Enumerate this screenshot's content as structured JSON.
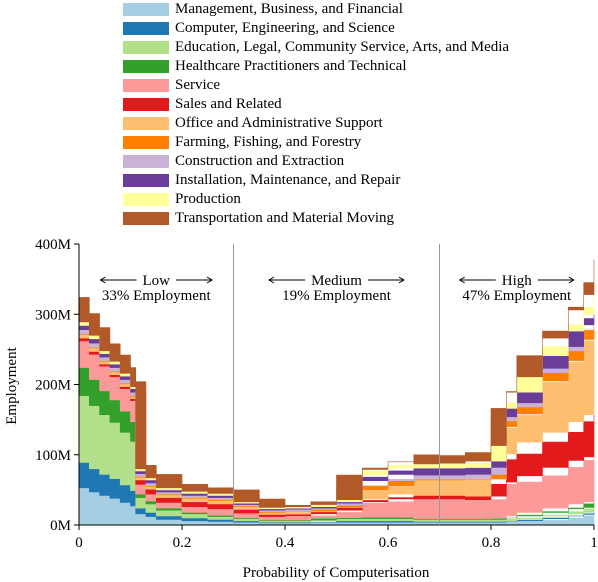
{
  "chart_data": {
    "type": "area",
    "xlabel": "Probability of Computerisation",
    "ylabel": "Employment",
    "xlim": [
      0,
      1
    ],
    "ylim": [
      0,
      400000000
    ],
    "x_ticks": [
      "0",
      "0.2",
      "0.4",
      "0.6",
      "0.8",
      "1"
    ],
    "y_ticks": [
      "0M",
      "100M",
      "200M",
      "300M",
      "400M"
    ],
    "dividers": [
      0.3,
      0.7
    ],
    "regions": [
      {
        "name": "Low",
        "share": "33% Employment"
      },
      {
        "name": "Medium",
        "share": "19% Employment"
      },
      {
        "name": "High",
        "share": "47% Employment"
      }
    ],
    "x": [
      0,
      0.02,
      0.04,
      0.06,
      0.08,
      0.1,
      0.11,
      0.13,
      0.15,
      0.2,
      0.25,
      0.3,
      0.35,
      0.4,
      0.45,
      0.5,
      0.55,
      0.6,
      0.65,
      0.7,
      0.75,
      0.8,
      0.83,
      0.85,
      0.9,
      0.95,
      0.98,
      1
    ],
    "series": [
      {
        "name": "Management, Business, and Financial",
        "color": "#a6cee3",
        "values": [
          60,
          53,
          47,
          42,
          38,
          32,
          27,
          16,
          12,
          8,
          6,
          5,
          4,
          3,
          3,
          4,
          4,
          4,
          4,
          4,
          4,
          4,
          4,
          5,
          7,
          10,
          13,
          15
        ]
      },
      {
        "name": "Computer, Engineering, and Science",
        "color": "#1f78b4",
        "values": [
          38,
          36,
          33,
          30,
          28,
          25,
          22,
          8,
          6,
          5,
          4,
          3,
          2,
          1,
          1,
          2,
          2,
          2,
          2,
          1,
          1,
          1,
          1,
          1,
          2,
          3,
          3,
          3
        ]
      },
      {
        "name": "Education, Legal, Community Service, Arts, and Media",
        "color": "#b2df8a",
        "values": [
          100,
          95,
          90,
          85,
          80,
          75,
          70,
          15,
          12,
          8,
          6,
          4,
          3,
          2,
          2,
          3,
          3,
          3,
          3,
          3,
          3,
          3,
          3,
          4,
          5,
          6,
          7,
          7
        ]
      },
      {
        "name": "Healthcare Practitioners and Technical",
        "color": "#33a02c",
        "values": [
          45,
          40,
          37,
          34,
          32,
          30,
          28,
          5,
          4,
          3,
          2,
          2,
          1,
          1,
          1,
          1,
          2,
          2,
          2,
          1,
          1,
          1,
          2,
          3,
          4,
          5,
          7,
          8
        ]
      },
      {
        "name": "Service",
        "color": "#fb9a99",
        "values": [
          40,
          38,
          36,
          35,
          33,
          32,
          30,
          14,
          10,
          8,
          8,
          9,
          7,
          5,
          6,
          8,
          20,
          22,
          28,
          28,
          28,
          27,
          48,
          48,
          52,
          58,
          62,
          64
        ]
      },
      {
        "name": "Sales and Related",
        "color": "#e31a1c",
        "values": [
          4,
          4,
          4,
          3,
          3,
          3,
          3,
          6,
          7,
          7,
          7,
          7,
          5,
          3,
          3,
          3,
          4,
          4,
          5,
          5,
          5,
          5,
          35,
          40,
          48,
          50,
          55,
          60
        ]
      },
      {
        "name": "Office and Administrative Support",
        "color": "#fdbf6f",
        "values": [
          5,
          5,
          5,
          4,
          4,
          4,
          3,
          4,
          4,
          4,
          5,
          5,
          4,
          3,
          3,
          4,
          14,
          18,
          20,
          22,
          22,
          24,
          45,
          55,
          85,
          100,
          115,
          120
        ]
      },
      {
        "name": "Farming, Fishing, and Forestry",
        "color": "#ff7f00",
        "values": [
          1,
          1,
          1,
          1,
          1,
          1,
          1,
          1,
          1,
          1,
          1,
          1,
          1,
          1,
          1,
          1,
          1,
          1,
          1,
          1,
          1,
          1,
          2,
          2,
          2,
          2,
          2,
          2
        ]
      },
      {
        "name": "Construction and Extraction",
        "color": "#cab2d6",
        "values": [
          6,
          6,
          6,
          5,
          5,
          5,
          5,
          4,
          4,
          3,
          3,
          3,
          2,
          2,
          2,
          2,
          6,
          7,
          7,
          6,
          6,
          6,
          8,
          10,
          12,
          14,
          15,
          15
        ]
      },
      {
        "name": "Installation, Maintenance, and Repair",
        "color": "#6a3d9a",
        "values": [
          6,
          6,
          6,
          5,
          5,
          5,
          5,
          4,
          4,
          3,
          3,
          3,
          2,
          2,
          2,
          3,
          12,
          14,
          13,
          10,
          10,
          10,
          6,
          6,
          6,
          6,
          6,
          6
        ]
      },
      {
        "name": "Production",
        "color": "#ffff99",
        "values": [
          5,
          5,
          5,
          4,
          4,
          4,
          3,
          3,
          3,
          3,
          3,
          3,
          2,
          2,
          2,
          2,
          3,
          4,
          5,
          6,
          7,
          9,
          12,
          15,
          18,
          22,
          25,
          28
        ]
      },
      {
        "name": "Transportation and Material Moving",
        "color": "#b15928",
        "values": [
          14,
          12,
          11,
          10,
          9,
          8,
          7,
          5,
          5,
          5,
          5,
          5,
          4,
          3,
          3,
          3,
          8,
          9,
          10,
          12,
          15,
          22,
          24,
          22,
          25,
          30,
          35,
          50
        ]
      }
    ]
  }
}
